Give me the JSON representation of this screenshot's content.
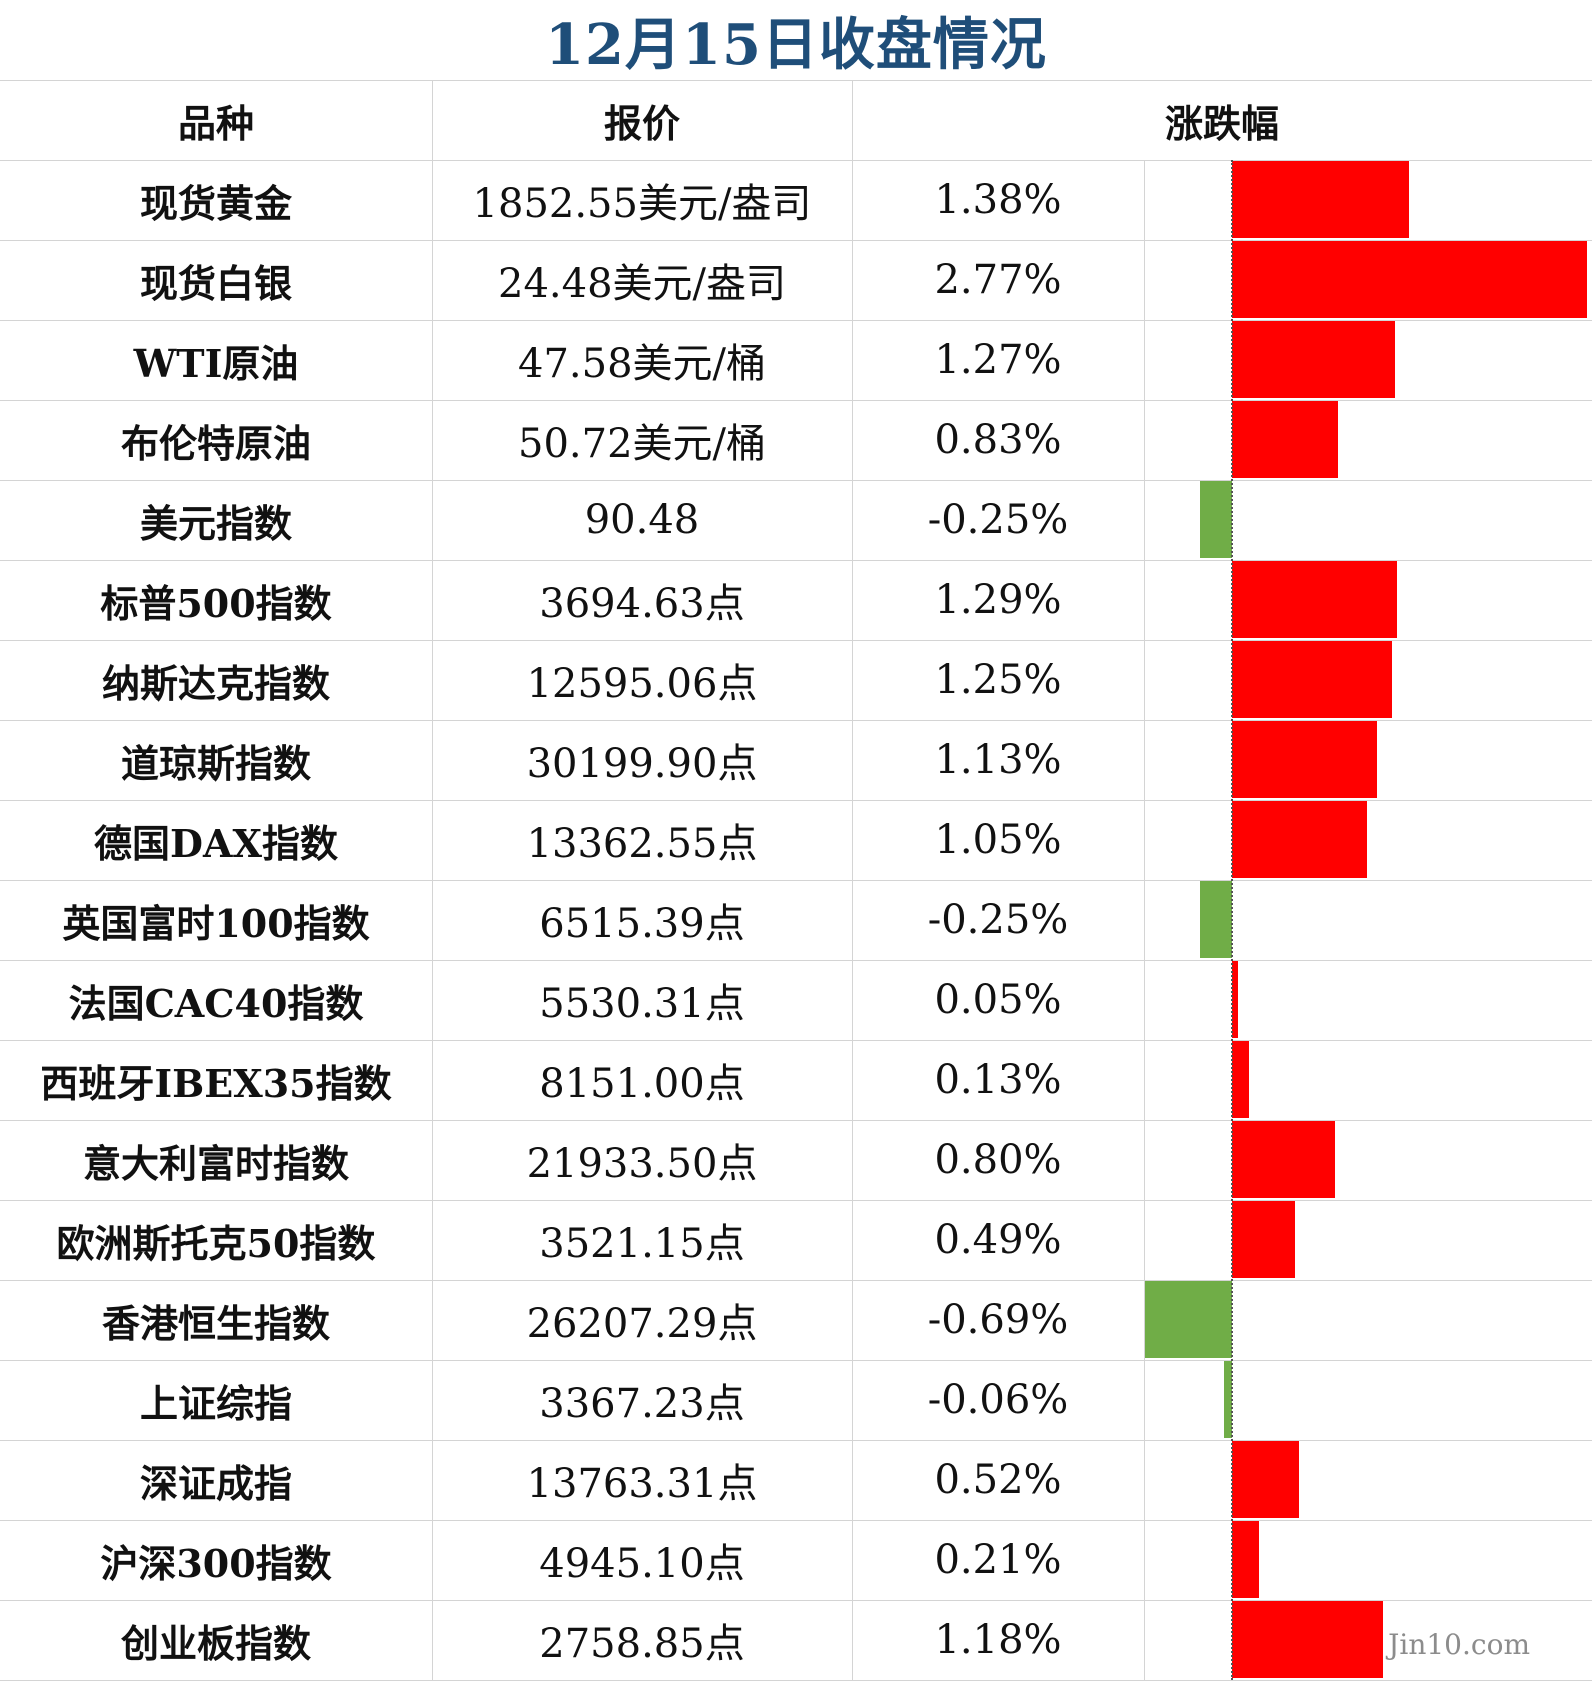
{
  "title": "12月15日收盘情况",
  "headers": {
    "name": "品种",
    "price": "报价",
    "change": "涨跌幅"
  },
  "watermark": "Jin10.com",
  "colors": {
    "up": "#ff0000",
    "down": "#70ad47",
    "title": "#1f4e79"
  },
  "chart_data": {
    "type": "bar",
    "orientation": "horizontal",
    "title": "12月15日收盘情况",
    "categories": [
      "现货黄金",
      "现货白银",
      "WTI原油",
      "布伦特原油",
      "美元指数",
      "标普500指数",
      "纳斯达克指数",
      "道琼斯指数",
      "德国DAX指数",
      "英国富时100指数",
      "法国CAC40指数",
      "西班牙IBEX35指数",
      "意大利富时指数",
      "欧洲斯托克50指数",
      "香港恒生指数",
      "上证综指",
      "深证成指",
      "沪深300指数",
      "创业板指数"
    ],
    "values": [
      1.38,
      2.77,
      1.27,
      0.83,
      -0.25,
      1.29,
      1.25,
      1.13,
      1.05,
      -0.25,
      0.05,
      0.13,
      0.8,
      0.49,
      -0.69,
      -0.06,
      0.52,
      0.21,
      1.18
    ],
    "unit": "%",
    "xlim": [
      -0.69,
      2.77
    ]
  },
  "rows": [
    {
      "name": "现货黄金",
      "price": "1852.55美元/盎司",
      "change": "1.38%"
    },
    {
      "name": "现货白银",
      "price": "24.48美元/盎司",
      "change": "2.77%"
    },
    {
      "name": "WTI原油",
      "price": "47.58美元/桶",
      "change": "1.27%"
    },
    {
      "name": "布伦特原油",
      "price": "50.72美元/桶",
      "change": "0.83%"
    },
    {
      "name": "美元指数",
      "price": "90.48",
      "change": "-0.25%"
    },
    {
      "name": "标普500指数",
      "price": "3694.63点",
      "change": "1.29%"
    },
    {
      "name": "纳斯达克指数",
      "price": "12595.06点",
      "change": "1.25%"
    },
    {
      "name": "道琼斯指数",
      "price": "30199.90点",
      "change": "1.13%"
    },
    {
      "name": "德国DAX指数",
      "price": "13362.55点",
      "change": "1.05%"
    },
    {
      "name": "英国富时100指数",
      "price": "6515.39点",
      "change": "-0.25%"
    },
    {
      "name": "法国CAC40指数",
      "price": "5530.31点",
      "change": "0.05%"
    },
    {
      "name": "西班牙IBEX35指数",
      "price": "8151.00点",
      "change": "0.13%"
    },
    {
      "name": "意大利富时指数",
      "price": "21933.50点",
      "change": "0.80%"
    },
    {
      "name": "欧洲斯托克50指数",
      "price": "3521.15点",
      "change": "0.49%"
    },
    {
      "name": "香港恒生指数",
      "price": "26207.29点",
      "change": "-0.69%"
    },
    {
      "name": "上证综指",
      "price": "3367.23点",
      "change": "-0.06%"
    },
    {
      "name": "深证成指",
      "price": "13763.31点",
      "change": "0.52%"
    },
    {
      "name": "沪深300指数",
      "price": "4945.10点",
      "change": "0.21%"
    },
    {
      "name": "创业板指数",
      "price": "2758.85点",
      "change": "1.18%"
    }
  ]
}
